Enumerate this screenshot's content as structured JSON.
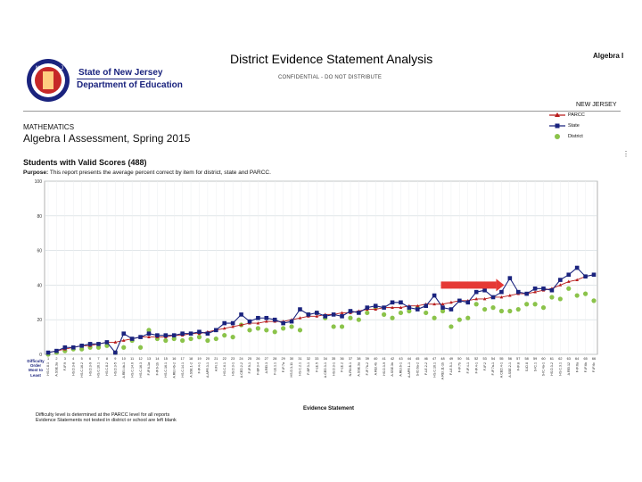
{
  "header": {
    "agency_line1": "State of New Jersey",
    "agency_line2": "Department of Education",
    "report_title": "District Evidence Statement Analysis",
    "confidential": "CONFIDENTIAL - DO NOT DISTRIBUTE",
    "subject": "Algebra I",
    "state_label": "NEW JERSEY",
    "subject_area": "MATHEMATICS",
    "assessment": "Algebra I Assessment, Spring 2015",
    "students": "Students with Valid Scores (488)",
    "purpose_label": "Purpose:",
    "purpose_text": " This report presents the average percent correct by item for district, state and PARCC."
  },
  "legend": {
    "parcc": "PARCC",
    "state": "State",
    "district": "District"
  },
  "colors": {
    "parcc": "#b71c1c",
    "state": "#1a237e",
    "district": "#8bc34a",
    "arrow": "#e53935",
    "grid": "#cfd8dc"
  },
  "footer": {
    "difficulty": [
      "Difficulty",
      "Order",
      "Most to",
      "Least"
    ],
    "x_title": "Evidence Statement",
    "note1": "Difficulty level is determined at the PARCC level for all reports",
    "note2": "Evidence Statements not tested in district or school are left blank"
  },
  "chart_data": {
    "type": "line",
    "ylim": [
      0,
      100
    ],
    "yticks": [
      0,
      20,
      40,
      60,
      80,
      100
    ],
    "grid": true,
    "legend_position": "top-right",
    "x": [
      1,
      2,
      3,
      4,
      5,
      6,
      7,
      8,
      9,
      10,
      11,
      12,
      13,
      14,
      15,
      16,
      17,
      18,
      19,
      20,
      21,
      22,
      23,
      24,
      25,
      26,
      27,
      28,
      29,
      30,
      31,
      32,
      33,
      34,
      35,
      36,
      37,
      38,
      39,
      40,
      41,
      42,
      43,
      44,
      45,
      46,
      47,
      48,
      49,
      50,
      51,
      52,
      53,
      54,
      55,
      56,
      57,
      58,
      59,
      60,
      61,
      62,
      63,
      64,
      65,
      66
    ],
    "categories": [
      "HS.C.8.1",
      "A.SSE.3a",
      "F-IF.9",
      "HS.D.3-8",
      "HS.C.16.2",
      "HS.D.3-9",
      "HS.C.16.1",
      "HS.C.8.2",
      "HS.D.3-5",
      "A.REI.4b-1",
      "HS.C.14.6",
      "HS.C.16.3",
      "F-IF.6-1a",
      "F-IF.6-1b",
      "HS.C.16.1",
      "A.REI.4b-2",
      "HS.C.14.1",
      "A.SSE.1-2",
      "F-IF.4-1",
      "A.APR.3-1",
      "A.IN.1",
      "HS.C.6.1",
      "HS.D.3-1",
      "A.CED.2-2",
      "F-IF.9-1",
      "F-BF.3-4",
      "A.REI.3",
      "F-LE.1.1",
      "F-IF.7a",
      "HS.D.3-11",
      "HS.C.2.1",
      "F-BF.3-1",
      "F-LE.5",
      "A.CED.3-1",
      "HS.D.3-1",
      "F-LE.2",
      "N-RN.B.1",
      "A.SSE.3a",
      "F-IF.7b-2",
      "A.REI.4b",
      "HS.D.3-9",
      "A.SSE.3b",
      "A.REI.6-1",
      "A.APR.1-1",
      "S-ID.6a-2",
      "F-LE.2-2",
      "HS.C.16.1",
      "A.REI.11-1b",
      "F-LE.5-1",
      "F-IF.7b",
      "F-IF.4-1",
      "F-IF.4-1",
      "F-IF.2",
      "F-IF.7a-1",
      "A.CED.4-1",
      "A.SSE.2-1",
      "F-IF.8",
      "S-ID.8",
      "S-IC.1",
      "S-IC.4a-1",
      "HS.D.3-2",
      "HS.C.3.1",
      "A.REI.12",
      "F-IF.6a",
      "F-IF.6b",
      "F-IF.6c"
    ],
    "series": [
      {
        "name": "PARCC",
        "values": [
          1,
          2,
          3,
          4,
          5,
          5,
          6,
          7,
          7,
          8,
          9,
          10,
          10,
          10,
          10,
          11,
          11,
          12,
          12,
          13,
          14,
          15,
          16,
          17,
          18,
          18,
          19,
          19,
          19,
          20,
          21,
          22,
          22,
          23,
          23,
          24,
          24,
          25,
          26,
          26,
          27,
          27,
          27,
          28,
          28,
          29,
          29,
          29,
          30,
          31,
          31,
          32,
          32,
          33,
          33,
          34,
          35,
          35,
          36,
          37,
          38,
          40,
          42,
          43,
          45,
          46
        ]
      },
      {
        "name": "State",
        "values": [
          1,
          2,
          4,
          4,
          5,
          6,
          6,
          7,
          1,
          12,
          9,
          10,
          12,
          11,
          11,
          11,
          12,
          12,
          13,
          12,
          14,
          18,
          18,
          23,
          19,
          21,
          21,
          20,
          18,
          19,
          26,
          23,
          24,
          22,
          23,
          22,
          25,
          24,
          27,
          28,
          27,
          30,
          30,
          27,
          26,
          28,
          34,
          27,
          26,
          31,
          30,
          36,
          37,
          33,
          36,
          44,
          36,
          35,
          38,
          38,
          37,
          43,
          46,
          50,
          45,
          46
        ]
      },
      {
        "name": "District",
        "values": [
          0,
          1,
          2,
          3,
          3,
          4,
          4,
          5,
          1,
          4,
          8,
          4,
          14,
          9,
          8,
          9,
          8,
          9,
          10,
          8,
          9,
          11,
          10,
          17,
          14,
          15,
          14,
          13,
          15,
          16,
          14,
          23,
          24,
          21,
          16,
          16,
          21,
          20,
          24,
          27,
          23,
          21,
          24,
          25,
          27,
          24,
          21,
          25,
          16,
          20,
          21,
          29,
          26,
          27,
          25,
          25,
          26,
          29,
          29,
          27,
          33,
          32,
          38,
          34,
          35,
          31
        ]
      }
    ]
  }
}
